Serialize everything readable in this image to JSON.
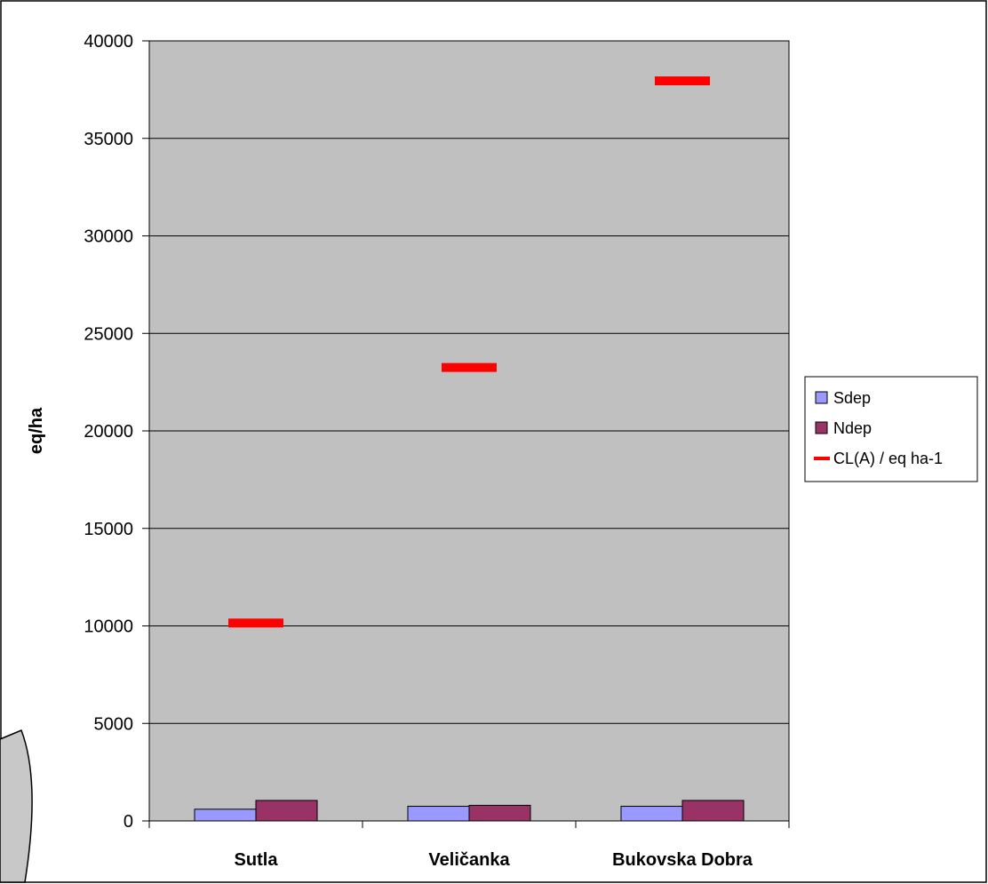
{
  "chart_data": {
    "type": "bar",
    "categories": [
      "Sutla",
      "Veličanka",
      "Bukovska Dobra"
    ],
    "series": [
      {
        "name": "Sdep",
        "kind": "bar",
        "values": [
          600,
          750,
          750
        ],
        "color": "#9999ff"
      },
      {
        "name": "Ndep",
        "kind": "bar",
        "values": [
          1050,
          800,
          1050
        ],
        "color": "#993366"
      },
      {
        "name": "CL(A) / eq ha-1",
        "kind": "marker",
        "values": [
          10150,
          23250,
          37950
        ],
        "color": "#ff0000"
      }
    ],
    "title": "",
    "xlabel": "",
    "ylabel": "eq/ha",
    "ylim": [
      0,
      40000
    ],
    "yticks": [
      0,
      5000,
      10000,
      15000,
      20000,
      25000,
      30000,
      35000,
      40000
    ],
    "grid": true,
    "legend_position": "right",
    "plot_background": "#c0c0c0"
  }
}
